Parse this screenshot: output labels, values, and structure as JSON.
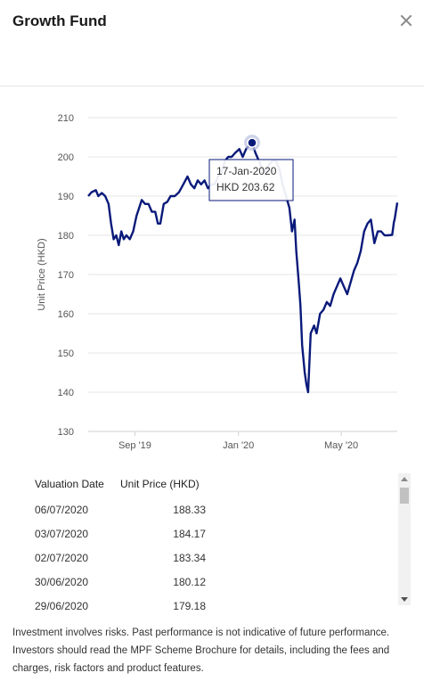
{
  "modal": {
    "title": "Growth Fund",
    "close_icon": "close-icon"
  },
  "chart_data": {
    "type": "line",
    "ylabel": "Unit Price (HKD)",
    "ylim": [
      130,
      210
    ],
    "yticks": [
      130,
      140,
      150,
      160,
      170,
      180,
      190,
      200,
      210
    ],
    "xlim": [
      "2019-07-08",
      "2020-07-06"
    ],
    "xticks": [
      {
        "date": "2019-09-01",
        "label": "Sep '19"
      },
      {
        "date": "2020-01-01",
        "label": "Jan '20"
      },
      {
        "date": "2020-05-01",
        "label": "May '20"
      }
    ],
    "grid": "horizontal",
    "series": [
      {
        "color": "#0a1a7a",
        "points": [
          [
            "2019-07-08",
            190
          ],
          [
            "2019-07-12",
            191
          ],
          [
            "2019-07-17",
            191.5
          ],
          [
            "2019-07-20",
            190
          ],
          [
            "2019-07-24",
            190.8
          ],
          [
            "2019-07-28",
            190
          ],
          [
            "2019-08-01",
            188
          ],
          [
            "2019-08-04",
            183
          ],
          [
            "2019-08-07",
            179
          ],
          [
            "2019-08-10",
            180
          ],
          [
            "2019-08-13",
            177.5
          ],
          [
            "2019-08-16",
            181
          ],
          [
            "2019-08-19",
            179
          ],
          [
            "2019-08-22",
            180
          ],
          [
            "2019-08-26",
            179
          ],
          [
            "2019-08-30",
            181
          ],
          [
            "2019-09-03",
            185
          ],
          [
            "2019-09-06",
            187
          ],
          [
            "2019-09-09",
            189
          ],
          [
            "2019-09-13",
            188
          ],
          [
            "2019-09-17",
            188
          ],
          [
            "2019-09-21",
            186
          ],
          [
            "2019-09-25",
            186
          ],
          [
            "2019-09-28",
            183
          ],
          [
            "2019-10-01",
            183
          ],
          [
            "2019-10-05",
            188
          ],
          [
            "2019-10-09",
            188.5
          ],
          [
            "2019-10-13",
            190
          ],
          [
            "2019-10-18",
            190
          ],
          [
            "2019-10-23",
            191
          ],
          [
            "2019-10-28",
            193
          ],
          [
            "2019-11-02",
            195
          ],
          [
            "2019-11-06",
            193
          ],
          [
            "2019-11-10",
            192
          ],
          [
            "2019-11-14",
            194
          ],
          [
            "2019-11-18",
            193
          ],
          [
            "2019-11-22",
            194
          ],
          [
            "2019-11-26",
            192
          ],
          [
            "2019-11-30",
            193
          ],
          [
            "2019-12-04",
            193
          ],
          [
            "2019-12-08",
            195
          ],
          [
            "2019-12-12",
            196
          ],
          [
            "2019-12-16",
            199
          ],
          [
            "2019-12-20",
            200
          ],
          [
            "2019-12-24",
            200
          ],
          [
            "2019-12-28",
            201
          ],
          [
            "2020-01-02",
            202
          ],
          [
            "2020-01-06",
            200
          ],
          [
            "2020-01-10",
            202
          ],
          [
            "2020-01-14",
            203
          ],
          [
            "2020-01-17",
            203.62
          ],
          [
            "2020-01-21",
            201
          ],
          [
            "2020-01-25",
            199
          ],
          [
            "2020-01-29",
            197
          ],
          [
            "2020-02-02",
            196
          ],
          [
            "2020-02-06",
            198
          ],
          [
            "2020-02-10",
            199
          ],
          [
            "2020-02-14",
            199
          ],
          [
            "2020-02-18",
            197
          ],
          [
            "2020-02-22",
            193
          ],
          [
            "2020-02-26",
            190
          ],
          [
            "2020-03-01",
            187
          ],
          [
            "2020-03-04",
            181
          ],
          [
            "2020-03-07",
            184
          ],
          [
            "2020-03-09",
            176
          ],
          [
            "2020-03-12",
            168
          ],
          [
            "2020-03-14",
            162
          ],
          [
            "2020-03-16",
            152
          ],
          [
            "2020-03-19",
            145
          ],
          [
            "2020-03-21",
            142
          ],
          [
            "2020-03-23",
            140
          ],
          [
            "2020-03-26",
            155
          ],
          [
            "2020-03-30",
            157
          ],
          [
            "2020-04-02",
            155
          ],
          [
            "2020-04-06",
            160
          ],
          [
            "2020-04-10",
            161
          ],
          [
            "2020-04-14",
            163
          ],
          [
            "2020-04-18",
            162
          ],
          [
            "2020-04-22",
            165
          ],
          [
            "2020-04-26",
            167
          ],
          [
            "2020-04-30",
            169
          ],
          [
            "2020-05-04",
            167
          ],
          [
            "2020-05-08",
            165
          ],
          [
            "2020-05-12",
            168
          ],
          [
            "2020-05-16",
            171
          ],
          [
            "2020-05-20",
            173
          ],
          [
            "2020-05-24",
            176
          ],
          [
            "2020-05-28",
            181
          ],
          [
            "2020-06-01",
            183
          ],
          [
            "2020-06-05",
            184
          ],
          [
            "2020-06-09",
            178
          ],
          [
            "2020-06-13",
            181
          ],
          [
            "2020-06-17",
            181
          ],
          [
            "2020-06-21",
            180
          ],
          [
            "2020-06-25",
            180
          ],
          [
            "2020-06-30",
            180.12
          ],
          [
            "2020-07-02",
            183.34
          ],
          [
            "2020-07-03",
            184.17
          ],
          [
            "2020-07-06",
            188.33
          ]
        ]
      }
    ],
    "highlight": {
      "date": "2020-01-17",
      "value": 203.62
    },
    "tooltip": {
      "date": "17-Jan-2020",
      "value": "HKD 203.62"
    }
  },
  "table": {
    "headers": [
      "Valuation Date",
      "Unit Price (HKD)"
    ],
    "rows": [
      [
        "06/07/2020",
        "188.33"
      ],
      [
        "03/07/2020",
        "184.17"
      ],
      [
        "02/07/2020",
        "183.34"
      ],
      [
        "30/06/2020",
        "180.12"
      ],
      [
        "29/06/2020",
        "179.18"
      ]
    ]
  },
  "disclaimer": "Investment involves risks. Past performance is not indicative of future performance. Investors should read the MPF Scheme Brochure for details, including the fees and charges, risk factors and product features."
}
